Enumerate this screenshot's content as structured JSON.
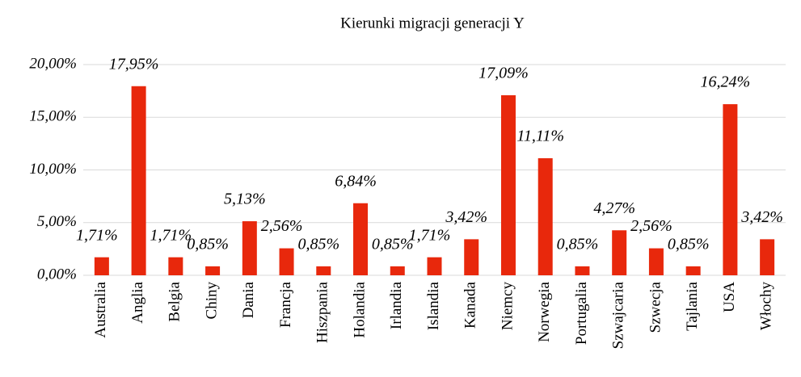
{
  "chart_data": {
    "type": "bar",
    "title": "Kierunki migracji generacji Y",
    "categories": [
      "Australia",
      "Anglia",
      "Belgia",
      "Chiny",
      "Dania",
      "Francja",
      "Hiszpania",
      "Holandia",
      "Irlandia",
      "Islandia",
      "Kanada",
      "Niemcy",
      "Norwegia",
      "Portugalia",
      "Szwajcaria",
      "Szwecja",
      "Tajlania",
      "USA",
      "Włochy"
    ],
    "values": [
      1.71,
      17.95,
      1.71,
      0.85,
      5.13,
      2.56,
      0.85,
      6.84,
      0.85,
      1.71,
      3.42,
      17.09,
      11.11,
      0.85,
      4.27,
      2.56,
      0.85,
      16.24,
      3.42
    ],
    "value_labels": [
      "1,71%",
      "17,95%",
      "1,71%",
      "0,85%",
      "5,13%",
      "2,56%",
      "0,85%",
      "6,84%",
      "0,85%",
      "1,71%",
      "3,42%",
      "17,09%",
      "11,11%",
      "0,85%",
      "4,27%",
      "2,56%",
      "0,85%",
      "16,24%",
      "3,42%"
    ],
    "color": "#e8280c",
    "ylim": [
      0,
      20
    ],
    "yticks": [
      {
        "value": 0,
        "label": "0,00%"
      },
      {
        "value": 5,
        "label": "5,00%"
      },
      {
        "value": 10,
        "label": "10,00%"
      },
      {
        "value": 15,
        "label": "15,00%"
      },
      {
        "value": 20,
        "label": "20,00%"
      }
    ],
    "grid": true
  }
}
